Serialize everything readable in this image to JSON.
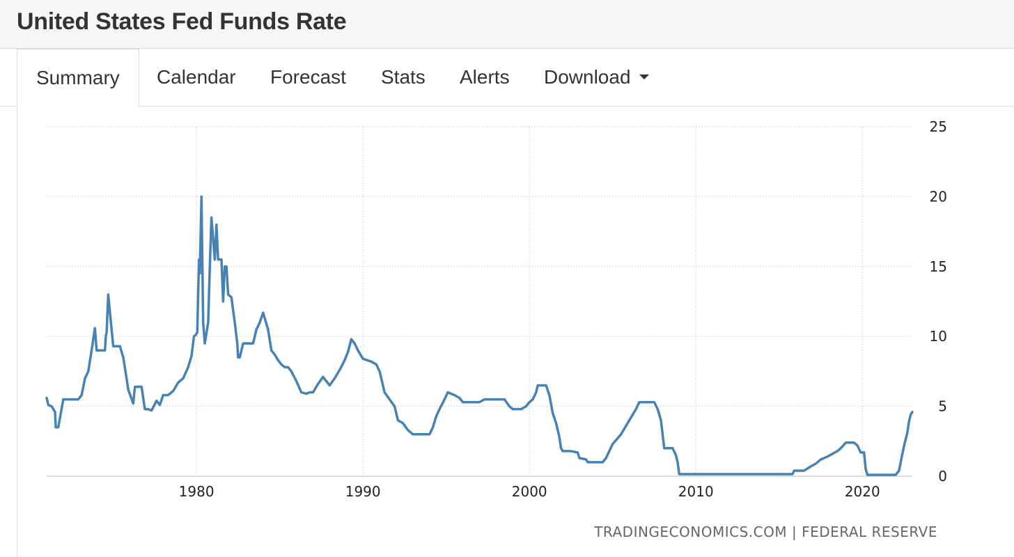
{
  "header": {
    "title": "United States Fed Funds Rate"
  },
  "tabs": [
    {
      "label": "Summary"
    },
    {
      "label": "Calendar"
    },
    {
      "label": "Forecast"
    },
    {
      "label": "Stats"
    },
    {
      "label": "Alerts"
    },
    {
      "label": "Download"
    }
  ],
  "source": "TRADINGECONOMICS.COM | FEDERAL RESERVE",
  "colors": {
    "line": "#4682b4",
    "grid": "#d9d9d9",
    "axis_text": "#222222"
  },
  "chart_data": {
    "type": "line",
    "title": "United States Fed Funds Rate",
    "xlabel": "",
    "ylabel": "",
    "xlim": [
      1971.0,
      2023.0
    ],
    "ylim": [
      0,
      25
    ],
    "x_ticks": [
      1980,
      1990,
      2000,
      2010,
      2020
    ],
    "y_ticks": [
      0,
      5,
      10,
      15,
      20,
      25
    ],
    "grid": true,
    "y_axis_position": "right",
    "series": [
      {
        "name": "Fed Funds Rate",
        "x": [
          1971.0,
          1971.1,
          1971.3,
          1971.5,
          1971.55,
          1971.7,
          1972.0,
          1972.5,
          1972.9,
          1973.1,
          1973.3,
          1973.5,
          1973.7,
          1973.9,
          1974.0,
          1974.3,
          1974.5,
          1974.55,
          1974.6,
          1974.7,
          1975.0,
          1975.2,
          1975.4,
          1975.6,
          1975.8,
          1975.9,
          1976.2,
          1976.3,
          1976.7,
          1976.9,
          1977.1,
          1977.3,
          1977.6,
          1977.8,
          1978.0,
          1978.3,
          1978.6,
          1978.9,
          1979.2,
          1979.5,
          1979.7,
          1979.85,
          1979.95,
          1980.05,
          1980.15,
          1980.2,
          1980.3,
          1980.4,
          1980.5,
          1980.7,
          1980.8,
          1980.9,
          1981.0,
          1981.1,
          1981.2,
          1981.3,
          1981.4,
          1981.5,
          1981.6,
          1981.7,
          1981.8,
          1981.9,
          1982.1,
          1982.3,
          1982.4,
          1982.45,
          1982.5,
          1982.6,
          1982.8,
          1983.0,
          1983.2,
          1983.4,
          1983.6,
          1983.8,
          1984.0,
          1984.3,
          1984.5,
          1984.7,
          1984.9,
          1985.1,
          1985.3,
          1985.5,
          1985.7,
          1986.0,
          1986.3,
          1986.6,
          1986.8,
          1987.0,
          1987.3,
          1987.6,
          1987.8,
          1988.0,
          1988.3,
          1988.6,
          1988.9,
          1989.1,
          1989.3,
          1989.5,
          1989.7,
          1990.0,
          1990.5,
          1990.8,
          1991.0,
          1991.3,
          1991.6,
          1991.9,
          1992.1,
          1992.4,
          1992.7,
          1993.0,
          1993.5,
          1994.0,
          1994.2,
          1994.4,
          1994.6,
          1994.9,
          1995.1,
          1995.5,
          1995.8,
          1996.0,
          1996.5,
          1997.0,
          1997.3,
          1998.0,
          1998.5,
          1998.8,
          1999.0,
          1999.5,
          1999.8,
          2000.0,
          2000.2,
          2000.4,
          2000.5,
          2001.0,
          2001.2,
          2001.4,
          2001.6,
          2001.8,
          2001.9,
          2002.0,
          2002.5,
          2002.9,
          2003.0,
          2003.4,
          2003.5,
          2004.0,
          2004.4,
          2004.6,
          2004.8,
          2005.0,
          2005.5,
          2006.0,
          2006.4,
          2006.6,
          2007.0,
          2007.5,
          2007.7,
          2007.9,
          2008.0,
          2008.1,
          2008.3,
          2008.6,
          2008.8,
          2008.9,
          2009.0,
          2010.0,
          2012.0,
          2014.0,
          2015.8,
          2015.9,
          2016.5,
          2016.9,
          2017.2,
          2017.5,
          2017.9,
          2018.2,
          2018.5,
          2018.7,
          2019.0,
          2019.5,
          2019.7,
          2019.9,
          2020.1,
          2020.2,
          2020.3,
          2021.0,
          2021.5,
          2022.0,
          2022.2,
          2022.3,
          2022.4,
          2022.55,
          2022.7,
          2022.8,
          2022.9,
          2023.0
        ],
        "values": [
          5.6,
          5.1,
          5.0,
          4.6,
          3.5,
          3.5,
          5.5,
          5.5,
          5.5,
          5.8,
          7.0,
          7.5,
          9.0,
          10.6,
          9.0,
          9.0,
          9.0,
          10.0,
          10.3,
          13.0,
          9.3,
          9.3,
          9.3,
          8.5,
          7.0,
          6.2,
          5.2,
          6.4,
          6.4,
          4.8,
          4.8,
          4.7,
          5.4,
          5.1,
          5.8,
          5.8,
          6.1,
          6.7,
          7.0,
          7.8,
          8.6,
          10.0,
          10.1,
          10.3,
          15.5,
          14.5,
          20.0,
          11.0,
          9.5,
          11.0,
          15.0,
          18.5,
          17.0,
          15.5,
          18.0,
          15.5,
          15.5,
          15.5,
          12.5,
          15.0,
          15.0,
          13.0,
          12.8,
          11.0,
          10.0,
          9.5,
          8.5,
          8.5,
          9.5,
          9.5,
          9.5,
          9.5,
          10.5,
          11.0,
          11.7,
          10.5,
          9.0,
          8.7,
          8.3,
          8.0,
          7.8,
          7.8,
          7.5,
          6.8,
          6.0,
          5.9,
          6.0,
          6.0,
          6.6,
          7.1,
          6.8,
          6.5,
          7.0,
          7.6,
          8.3,
          8.9,
          9.8,
          9.5,
          9.0,
          8.4,
          8.2,
          8.0,
          7.5,
          6.0,
          5.5,
          5.0,
          4.0,
          3.8,
          3.3,
          3.0,
          3.0,
          3.0,
          3.5,
          4.3,
          4.8,
          5.5,
          6.0,
          5.8,
          5.6,
          5.3,
          5.3,
          5.3,
          5.5,
          5.5,
          5.5,
          5.0,
          4.8,
          4.8,
          5.0,
          5.3,
          5.5,
          6.0,
          6.5,
          6.5,
          5.8,
          4.5,
          3.8,
          2.8,
          2.0,
          1.8,
          1.8,
          1.7,
          1.3,
          1.2,
          1.0,
          1.0,
          1.0,
          1.3,
          1.8,
          2.3,
          3.0,
          4.0,
          4.8,
          5.3,
          5.3,
          5.3,
          4.8,
          4.0,
          3.0,
          2.0,
          2.0,
          2.0,
          1.5,
          1.0,
          0.15,
          0.15,
          0.15,
          0.15,
          0.15,
          0.4,
          0.4,
          0.7,
          0.9,
          1.2,
          1.4,
          1.6,
          1.8,
          2.0,
          2.4,
          2.4,
          2.2,
          1.7,
          1.7,
          0.5,
          0.1,
          0.1,
          0.1,
          0.1,
          0.4,
          1.0,
          1.6,
          2.4,
          3.1,
          3.9,
          4.4,
          4.6
        ]
      }
    ]
  }
}
